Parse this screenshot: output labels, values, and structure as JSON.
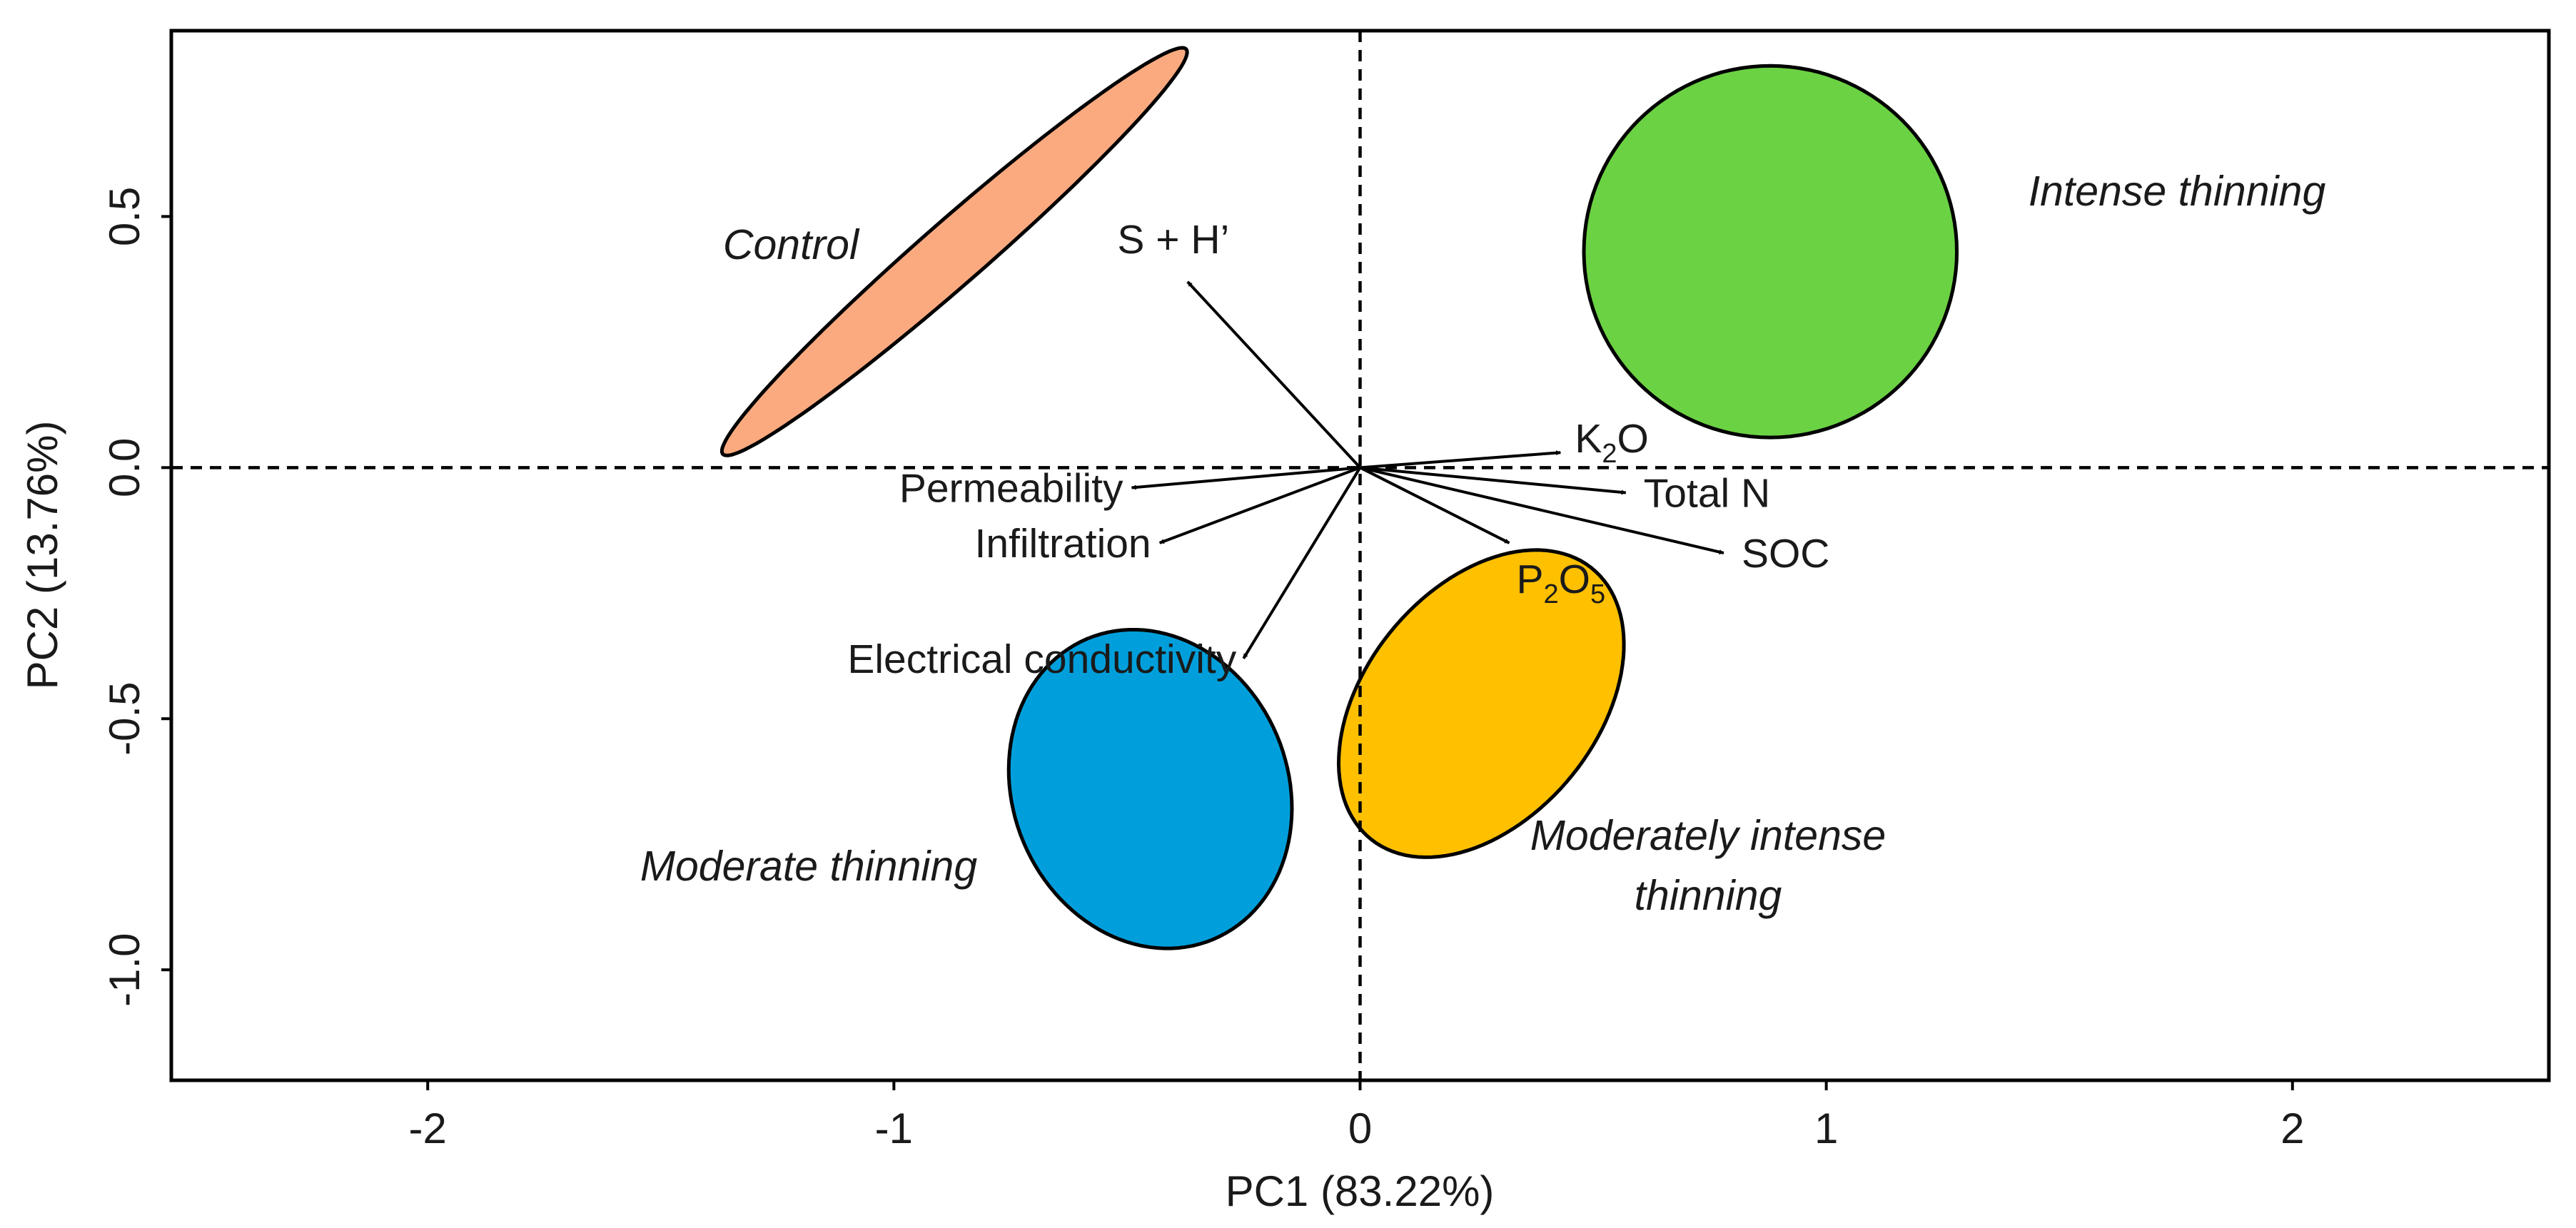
{
  "chart_data": {
    "type": "scatter",
    "subtype": "pca-biplot",
    "title": "",
    "xlabel": "PC1 (83.22%)",
    "ylabel": "PC2 (13.76%)",
    "xlim": [
      -2.55,
      2.55
    ],
    "ylim": [
      -1.22,
      0.87
    ],
    "xticks": [
      {
        "v": -2,
        "label": "-2"
      },
      {
        "v": -1,
        "label": "-1"
      },
      {
        "v": 0,
        "label": "0"
      },
      {
        "v": 1,
        "label": "1"
      },
      {
        "v": 2,
        "label": "2"
      }
    ],
    "yticks": [
      {
        "v": -1.0,
        "label": "-1.0"
      },
      {
        "v": -0.5,
        "label": "-0.5"
      },
      {
        "v": 0.0,
        "label": "0.0"
      },
      {
        "v": 0.5,
        "label": "0.5"
      }
    ],
    "reference_lines": {
      "x": 0,
      "y": 0,
      "style": "dashed"
    },
    "groups": [
      {
        "name": "Control",
        "color": "#FBAA80",
        "center": [
          -0.87,
          0.43
        ],
        "a": 0.64,
        "b": 0.065,
        "angle_deg": 39
      },
      {
        "name": "Intense thinning",
        "color": "#6BD243",
        "center": [
          0.88,
          0.43
        ],
        "a": 0.4,
        "b": 0.37,
        "angle_deg": 0
      },
      {
        "name": "Moderate thinning",
        "color": "#009FDB",
        "center": [
          -0.45,
          -0.64
        ],
        "a": 0.33,
        "b": 0.29,
        "angle_deg": -55
      },
      {
        "name": "Moderately intense thinning",
        "label_lines": [
          "Moderately intense",
          "thinning"
        ],
        "color": "#FFC000",
        "center": [
          0.26,
          -0.47
        ],
        "a": 0.36,
        "b": 0.24,
        "angle_deg": 45
      }
    ],
    "loadings": [
      {
        "name": "S + H’",
        "x": -0.37,
        "y": 0.37
      },
      {
        "name": "K2O",
        "label_main": "K",
        "label_sub": "2",
        "label_tail": "O",
        "x": 0.43,
        "y": 0.03
      },
      {
        "name": "Total N",
        "x": 0.57,
        "y": -0.05
      },
      {
        "name": "SOC",
        "x": 0.78,
        "y": -0.17
      },
      {
        "name": "P2O5",
        "label_main": "P",
        "label_sub": "2",
        "label_mid": "O",
        "label_sub2": "5",
        "x": 0.32,
        "y": -0.15
      },
      {
        "name": "Permeability",
        "x": -0.49,
        "y": -0.04
      },
      {
        "name": "Infiltration",
        "x": -0.43,
        "y": -0.15
      },
      {
        "name": "Electrical conductivity",
        "x": -0.25,
        "y": -0.38
      }
    ]
  }
}
